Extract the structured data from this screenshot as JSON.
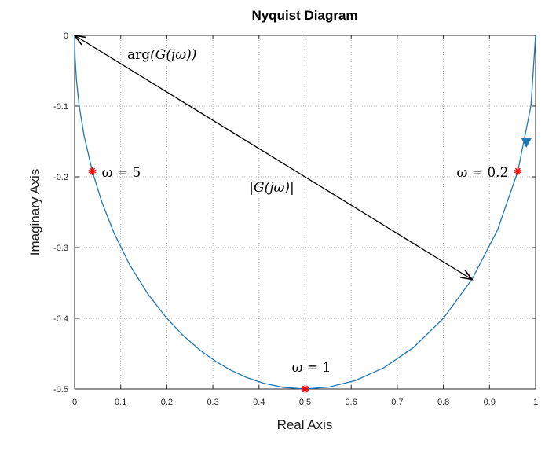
{
  "chart_data": {
    "type": "line",
    "title": "Nyquist Diagram",
    "xlabel": "Real Axis",
    "ylabel": "Imaginary Axis",
    "xlim": [
      0,
      1
    ],
    "ylim": [
      -0.5,
      0
    ],
    "xticks": [
      "0",
      "0.1",
      "0.2",
      "0.3",
      "0.4",
      "0.5",
      "0.6",
      "0.7",
      "0.8",
      "0.9",
      "1"
    ],
    "yticks": [
      "0",
      "-0.1",
      "-0.2",
      "-0.3",
      "-0.4",
      "-0.5"
    ],
    "grid": true,
    "series": [
      {
        "color": "#1f77b4",
        "x": [
          1.0,
          0.9901,
          0.9615,
          0.9174,
          0.8621,
          0.8,
          0.7353,
          0.6711,
          0.6098,
          0.5525,
          0.5,
          0.4525,
          0.4098,
          0.3717,
          0.3378,
          0.3077,
          0.2743,
          0.2358,
          0.2,
          0.1597,
          0.1199,
          0.0855,
          0.0588,
          0.0385,
          0.0204,
          0.0099,
          0.0039,
          0.001,
          0.0
        ],
        "y": [
          0.0,
          -0.099,
          -0.1923,
          -0.2752,
          -0.3448,
          -0.4,
          -0.4412,
          -0.4698,
          -0.4878,
          -0.4972,
          -0.5,
          -0.4977,
          -0.4918,
          -0.4833,
          -0.473,
          -0.4615,
          -0.4462,
          -0.4245,
          -0.4,
          -0.3662,
          -0.3249,
          -0.2795,
          -0.2353,
          -0.1923,
          -0.1414,
          -0.0995,
          -0.0626,
          -0.0316,
          0.0
        ]
      }
    ],
    "markers": [
      {
        "x": 0.9615,
        "y": -0.1923,
        "label": "ω = 0.2",
        "color": "#ff0000"
      },
      {
        "x": 0.5,
        "y": -0.5,
        "label": "ω = 1",
        "color": "#ff0000"
      },
      {
        "x": 0.0385,
        "y": -0.1923,
        "label": "ω = 5",
        "color": "#ff0000"
      }
    ],
    "direction_arrow": {
      "x": 0.98,
      "y": -0.15,
      "color": "#1f77b4"
    },
    "vector": {
      "from": {
        "x": 0.0,
        "y": 0.0
      },
      "to": {
        "x": 0.862,
        "y": -0.345
      },
      "color": "#000000"
    },
    "annotations": [
      {
        "text_main": "arg",
        "text_arg": "(G(jω))"
      },
      {
        "text": "|G(jω)|"
      }
    ]
  }
}
